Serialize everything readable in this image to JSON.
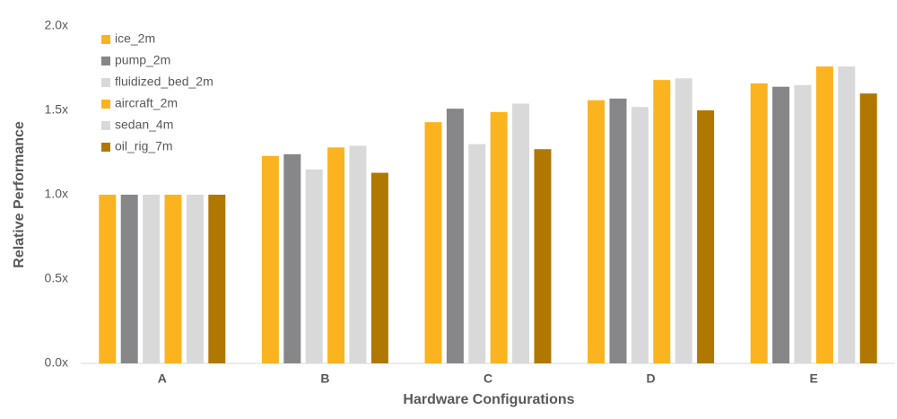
{
  "chart_data": {
    "type": "bar",
    "x_label": "Hardware Configurations",
    "y_label": "Relative Performance",
    "categories": [
      "A",
      "B",
      "C",
      "D",
      "E"
    ],
    "series": [
      {
        "name": "ice_2m",
        "color": "#fbb41f",
        "values": [
          1.0,
          1.23,
          1.43,
          1.56,
          1.66
        ]
      },
      {
        "name": "pump_2m",
        "color": "#87878a",
        "values": [
          1.0,
          1.24,
          1.51,
          1.57,
          1.64
        ]
      },
      {
        "name": "fluidized_bed_2m",
        "color": "#d9d9d9",
        "values": [
          1.0,
          1.15,
          1.3,
          1.52,
          1.65
        ]
      },
      {
        "name": "aircraft_2m",
        "color": "#fbb41f",
        "values": [
          1.0,
          1.28,
          1.49,
          1.68,
          1.76
        ]
      },
      {
        "name": "sedan_4m",
        "color": "#d9d9d9",
        "values": [
          1.0,
          1.29,
          1.54,
          1.69,
          1.76
        ]
      },
      {
        "name": "oil_rig_7m",
        "color": "#b07800",
        "values": [
          1.0,
          1.13,
          1.27,
          1.5,
          1.6
        ]
      }
    ],
    "ylim": [
      0,
      2.0
    ],
    "yticks": [
      {
        "value": 0,
        "label": "0.0x"
      },
      {
        "value": 0.5,
        "label": "0.5x"
      },
      {
        "value": 1.0,
        "label": "1.0x"
      },
      {
        "value": 1.5,
        "label": "1.5x"
      },
      {
        "value": 2.0,
        "label": "2.0x"
      }
    ],
    "legend": "top-left"
  }
}
